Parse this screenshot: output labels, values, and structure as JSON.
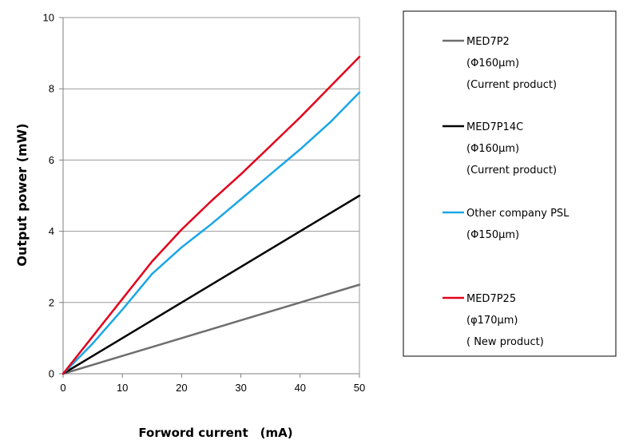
{
  "chart_data": {
    "type": "line",
    "xlabel": "Forword current　(mA)",
    "ylabel": "Output power (mW)",
    "xlim": [
      0,
      50
    ],
    "ylim": [
      0,
      10
    ],
    "xticks": [
      "0",
      "10",
      "20",
      "30",
      "40",
      "50"
    ],
    "yticks": [
      "0",
      "2",
      "4",
      "6",
      "8",
      "10"
    ],
    "grid": "horizontal",
    "legend_position": "right",
    "series": [
      {
        "name": "MED7P2",
        "legend_lines": [
          "MED7P2",
          "(Φ160μm)",
          "(Current product)"
        ],
        "color": "#6e6e6e",
        "x": [
          0,
          10,
          20,
          30,
          40,
          50
        ],
        "y": [
          0,
          0.5,
          1.0,
          1.5,
          2.0,
          2.5
        ]
      },
      {
        "name": "MED7P14C",
        "legend_lines": [
          "MED7P14C",
          "(Φ160μm)",
          "(Current product)"
        ],
        "color": "#000000",
        "x": [
          0,
          10,
          20,
          30,
          40,
          50
        ],
        "y": [
          0,
          1.0,
          2.0,
          3.0,
          4.0,
          5.0
        ]
      },
      {
        "name": "Other company PSL",
        "legend_lines": [
          "Other company PSL",
          "(Φ150μm)"
        ],
        "color": "#1aa6e6",
        "x": [
          0,
          5,
          10,
          15,
          20,
          25,
          30,
          35,
          40,
          45,
          50
        ],
        "y": [
          0,
          0.85,
          1.8,
          2.8,
          3.55,
          4.2,
          4.9,
          5.6,
          6.3,
          7.05,
          7.9
        ]
      },
      {
        "name": "MED7P25",
        "legend_lines": [
          "MED7P25",
          " (φ170μm)",
          "( New product)"
        ],
        "color": "#e3001b",
        "x": [
          0,
          5,
          10,
          15,
          20,
          25,
          30,
          35,
          40,
          45,
          50
        ],
        "y": [
          0,
          1.05,
          2.1,
          3.15,
          4.05,
          4.85,
          5.6,
          6.4,
          7.2,
          8.05,
          8.9
        ]
      }
    ]
  }
}
